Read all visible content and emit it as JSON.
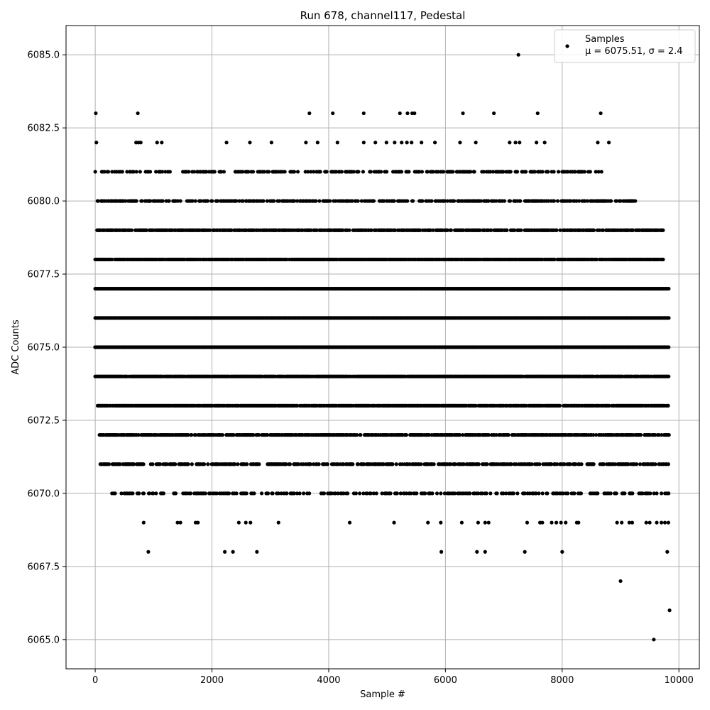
{
  "chart_data": {
    "type": "scatter",
    "title": "Run 678, channel117, Pedestal",
    "xlabel": "Sample #",
    "ylabel": "ADC Counts",
    "xlim": [
      -500,
      10350
    ],
    "ylim": [
      6064,
      6086
    ],
    "xticks": [
      0,
      2000,
      4000,
      6000,
      8000,
      10000
    ],
    "xtick_labels": [
      "0",
      "2000",
      "4000",
      "6000",
      "8000",
      "10000"
    ],
    "yticks": [
      6065.0,
      6067.5,
      6070.0,
      6072.5,
      6075.0,
      6077.5,
      6080.0,
      6082.5,
      6085.0
    ],
    "ytick_labels": [
      "6065.0",
      "6067.5",
      "6070.0",
      "6072.5",
      "6075.0",
      "6077.5",
      "6080.0",
      "6082.5",
      "6085.0"
    ],
    "grid": true,
    "legend_position": "top-right",
    "marker_color": "#000000",
    "legend": {
      "label": "Samples",
      "stats_label": "μ = 6075.51, σ = 2.4"
    },
    "series": [
      {
        "name": "Samples",
        "points": [
          [
            10,
            6083
          ],
          [
            730,
            6083
          ],
          [
            3670,
            6083
          ],
          [
            4070,
            6083
          ],
          [
            4600,
            6083
          ],
          [
            5220,
            6083
          ],
          [
            5350,
            6083
          ],
          [
            5430,
            6083
          ],
          [
            5470,
            6083
          ],
          [
            6300,
            6083
          ],
          [
            6830,
            6083
          ],
          [
            7580,
            6083
          ],
          [
            8660,
            6083
          ],
          [
            7250,
            6085
          ],
          [
            9000,
            6067
          ],
          [
            9570,
            6065
          ],
          [
            9840,
            6066
          ],
          [
            20,
            6082
          ],
          [
            700,
            6082
          ],
          [
            740,
            6082
          ],
          [
            780,
            6082
          ],
          [
            1060,
            6082
          ],
          [
            1140,
            6082
          ],
          [
            2250,
            6082
          ],
          [
            2650,
            6082
          ],
          [
            3020,
            6082
          ],
          [
            3610,
            6082
          ],
          [
            3810,
            6082
          ],
          [
            4150,
            6082
          ],
          [
            4600,
            6082
          ],
          [
            4800,
            6082
          ],
          [
            4990,
            6082
          ],
          [
            5130,
            6082
          ],
          [
            5250,
            6082
          ],
          [
            5340,
            6082
          ],
          [
            5420,
            6082
          ],
          [
            5590,
            6082
          ],
          [
            5820,
            6082
          ],
          [
            6250,
            6082
          ],
          [
            6520,
            6082
          ],
          [
            7100,
            6082
          ],
          [
            7200,
            6082
          ],
          [
            7270,
            6082
          ],
          [
            7560,
            6082
          ],
          [
            7700,
            6082
          ],
          [
            8610,
            6082
          ],
          [
            8800,
            6082
          ],
          [
            910,
            6068
          ],
          [
            2220,
            6068
          ],
          [
            2360,
            6068
          ],
          [
            2770,
            6068
          ],
          [
            5930,
            6068
          ],
          [
            6540,
            6068
          ],
          [
            6680,
            6068
          ],
          [
            7360,
            6068
          ],
          [
            8000,
            6068
          ],
          [
            9800,
            6068
          ],
          [
            830,
            6069
          ],
          [
            1410,
            6069
          ],
          [
            1460,
            6069
          ],
          [
            1720,
            6069
          ],
          [
            1760,
            6069
          ],
          [
            2460,
            6069
          ],
          [
            2580,
            6069
          ],
          [
            2660,
            6069
          ],
          [
            3140,
            6069
          ],
          [
            4360,
            6069
          ],
          [
            5120,
            6069
          ],
          [
            5700,
            6069
          ],
          [
            5920,
            6069
          ],
          [
            6280,
            6069
          ],
          [
            6560,
            6069
          ],
          [
            6680,
            6069
          ],
          [
            6740,
            6069
          ],
          [
            7400,
            6069
          ],
          [
            7620,
            6069
          ],
          [
            7660,
            6069
          ],
          [
            7820,
            6069
          ],
          [
            7900,
            6069
          ],
          [
            7980,
            6069
          ],
          [
            8060,
            6069
          ],
          [
            8250,
            6069
          ],
          [
            8280,
            6069
          ],
          [
            8940,
            6069
          ],
          [
            9020,
            6069
          ],
          [
            9150,
            6069
          ],
          [
            9200,
            6069
          ],
          [
            9440,
            6069
          ],
          [
            9500,
            6069
          ],
          [
            9620,
            6069
          ],
          [
            9700,
            6069
          ],
          [
            9760,
            6069
          ],
          [
            9820,
            6069
          ]
        ],
        "dense_rows": [
          {
            "y": 6081,
            "xmin": 0,
            "xmax": 8700,
            "density": 0.45
          },
          {
            "y": 6080,
            "xmin": 20,
            "xmax": 9270,
            "density": 0.6
          },
          {
            "y": 6079,
            "xmin": 0,
            "xmax": 9760,
            "density": 0.75
          },
          {
            "y": 6078,
            "xmin": 0,
            "xmax": 9730,
            "density": 0.9
          },
          {
            "y": 6077,
            "xmin": 0,
            "xmax": 9830,
            "density": 1.0
          },
          {
            "y": 6076,
            "xmin": 0,
            "xmax": 9830,
            "density": 1.0
          },
          {
            "y": 6075,
            "xmin": 0,
            "xmax": 9830,
            "density": 1.0
          },
          {
            "y": 6074,
            "xmin": 0,
            "xmax": 9830,
            "density": 0.95
          },
          {
            "y": 6073,
            "xmin": 40,
            "xmax": 9830,
            "density": 0.9
          },
          {
            "y": 6072,
            "xmin": 70,
            "xmax": 9830,
            "density": 0.75
          },
          {
            "y": 6071,
            "xmin": 90,
            "xmax": 9830,
            "density": 0.6
          },
          {
            "y": 6070,
            "xmin": 290,
            "xmax": 9830,
            "density": 0.4
          }
        ]
      }
    ]
  }
}
